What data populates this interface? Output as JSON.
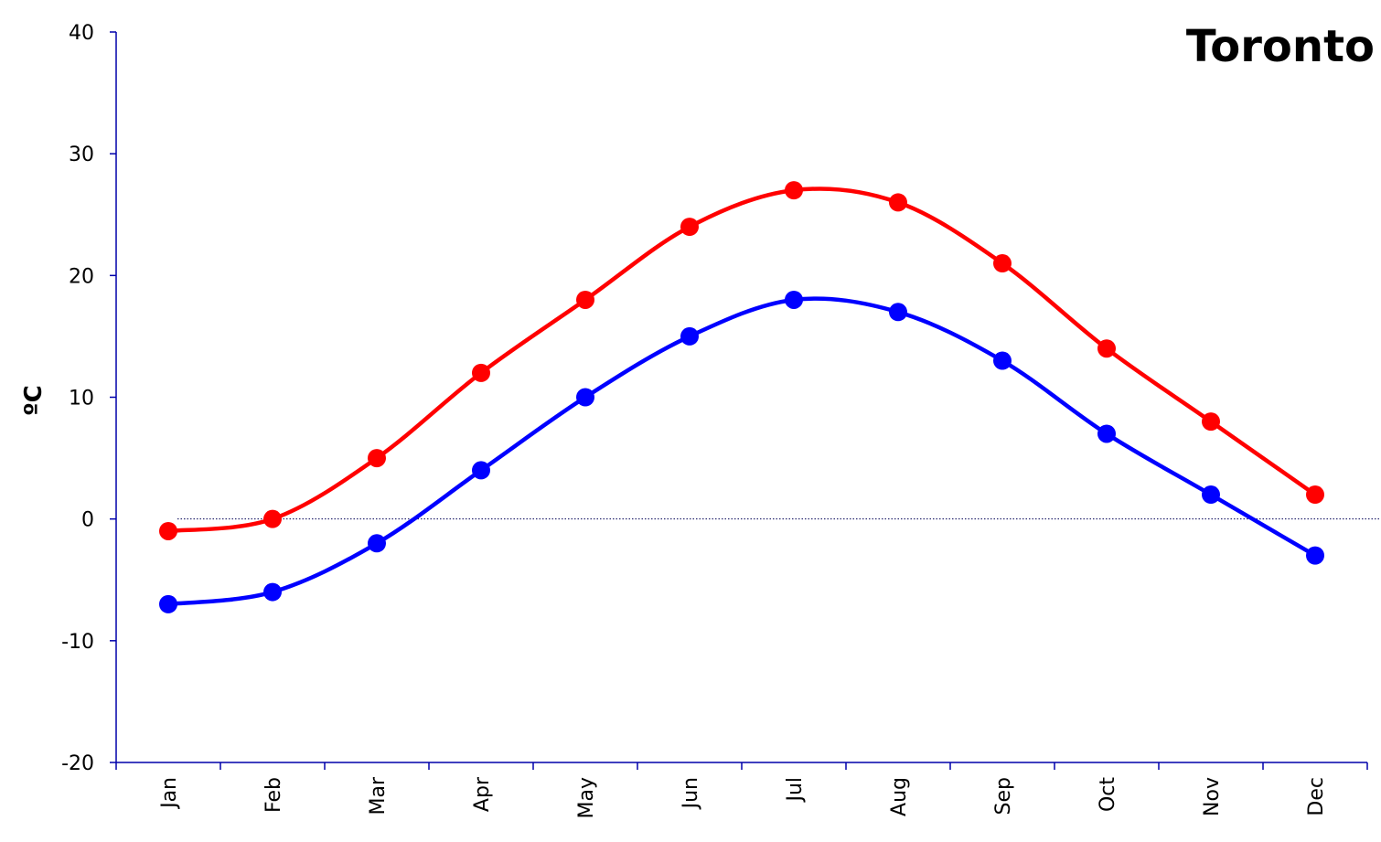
{
  "chart_data": {
    "type": "line",
    "title": "Toronto",
    "xlabel": "",
    "ylabel": "ºC",
    "categories": [
      "Jan",
      "Feb",
      "Mar",
      "Apr",
      "May",
      "Jun",
      "Jul",
      "Aug",
      "Sep",
      "Oct",
      "Nov",
      "Dec"
    ],
    "ylim": [
      -20,
      40
    ],
    "yticks": [
      "40",
      "30",
      "20",
      "10",
      "0",
      "-10",
      "-20"
    ],
    "ytick_values": [
      40,
      30,
      20,
      10,
      0,
      -10,
      -20
    ],
    "zero_line": true,
    "grid": false,
    "legend": "none",
    "series": [
      {
        "color": "#ff0000",
        "values": [
          -1,
          0,
          5,
          12,
          18,
          24,
          27,
          26,
          21,
          14,
          8,
          2
        ]
      },
      {
        "color": "#0000ff",
        "values": [
          -7,
          -6,
          -2,
          4,
          10,
          15,
          18,
          17,
          13,
          7,
          2,
          -3
        ]
      }
    ]
  }
}
